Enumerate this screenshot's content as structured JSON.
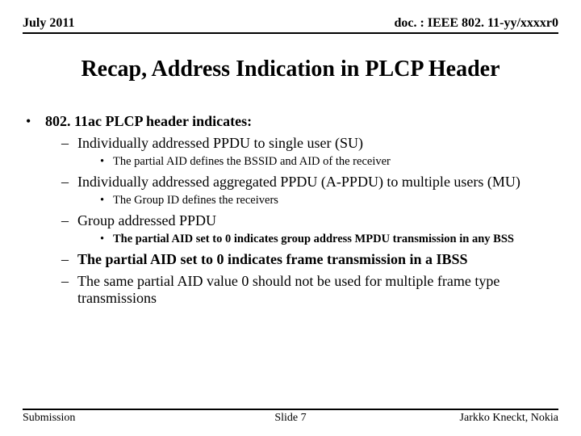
{
  "header": {
    "left": "July 2011",
    "right": "doc. : IEEE 802. 11-yy/xxxxr0"
  },
  "title": "Recap, Address Indication in PLCP Header",
  "content": {
    "l0": "802. 11ac PLCP header indicates:",
    "items": [
      {
        "l1": "Individually addressed PPDU to single user (SU)",
        "l1_bold": false,
        "l2": "The partial AID defines the BSSID and AID of the receiver",
        "l2_bold": false
      },
      {
        "l1": "Individually addressed aggregated PPDU (A-PPDU) to multiple users (MU)",
        "l1_bold": false,
        "l2": "The Group ID defines the receivers",
        "l2_bold": false
      },
      {
        "l1": "Group addressed PPDU",
        "l1_bold": false,
        "l2": "The partial AID set to 0 indicates group address MPDU transmission in any BSS",
        "l2_bold": true
      },
      {
        "l1": "The partial AID set to 0 indicates frame transmission in a IBSS",
        "l1_bold": true
      },
      {
        "l1": "The same partial AID value 0 should not be used for multiple frame type transmissions",
        "l1_bold": false
      }
    ]
  },
  "footer": {
    "left": "Submission",
    "center": "Slide 7",
    "right": "Jarkko Kneckt, Nokia"
  }
}
